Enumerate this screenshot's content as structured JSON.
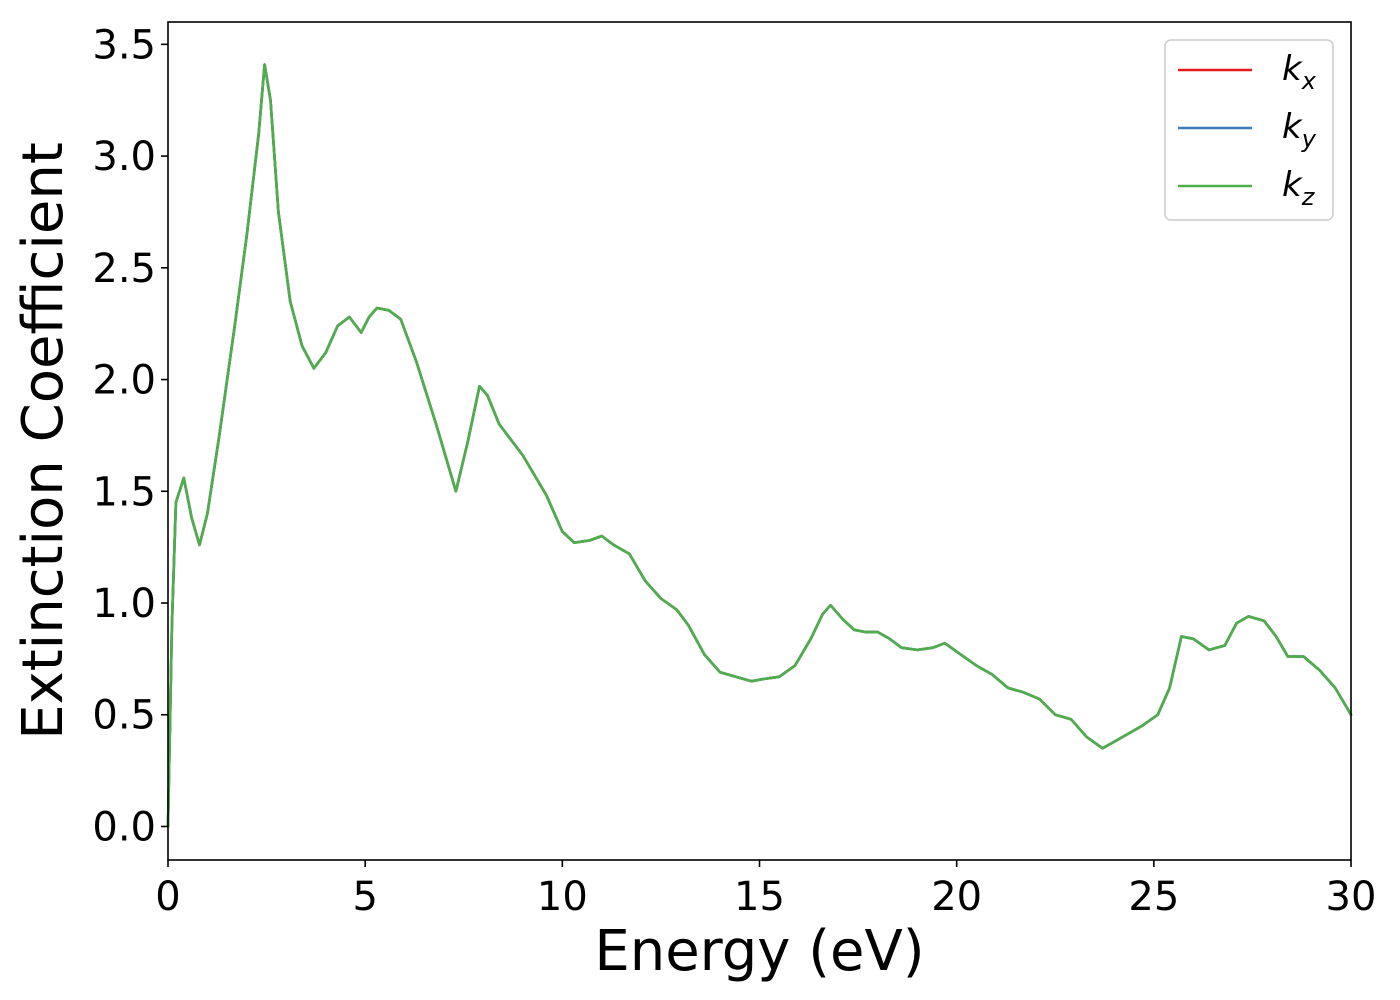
{
  "chart_data": {
    "type": "line",
    "xlabel": "Energy (eV)",
    "ylabel": "Extinction Coefficient",
    "xlim": [
      0,
      30
    ],
    "ylim": [
      -0.15,
      3.6
    ],
    "xticks": [
      0,
      5,
      10,
      15,
      20,
      25,
      30
    ],
    "xtick_labels": [
      "0",
      "5",
      "10",
      "15",
      "20",
      "25",
      "30"
    ],
    "yticks": [
      0.0,
      0.5,
      1.0,
      1.5,
      2.0,
      2.5,
      3.0,
      3.5
    ],
    "ytick_labels": [
      "0.0",
      "0.5",
      "1.0",
      "1.5",
      "2.0",
      "2.5",
      "3.0",
      "3.5"
    ],
    "grid": false,
    "legend_position": "top-right",
    "series": [
      {
        "name": "k_x",
        "label_main": "k",
        "label_sub": "x",
        "color": "#e41a1c"
      },
      {
        "name": "k_y",
        "label_main": "k",
        "label_sub": "y",
        "color": "#377eb8"
      },
      {
        "name": "k_z",
        "label_main": "k",
        "label_sub": "z",
        "color": "#4daf4a"
      }
    ],
    "x": [
      0,
      0.1,
      0.2,
      0.4,
      0.6,
      0.8,
      1.0,
      1.3,
      1.7,
      2.0,
      2.3,
      2.45,
      2.6,
      2.8,
      3.1,
      3.4,
      3.7,
      4.0,
      4.3,
      4.6,
      4.9,
      5.1,
      5.3,
      5.6,
      5.9,
      6.3,
      6.8,
      7.3,
      7.6,
      7.9,
      8.1,
      8.4,
      9.0,
      9.6,
      10.0,
      10.3,
      10.7,
      11.0,
      11.3,
      11.7,
      12.1,
      12.5,
      12.9,
      13.2,
      13.6,
      14.0,
      14.4,
      14.8,
      15.1,
      15.5,
      15.9,
      16.3,
      16.6,
      16.8,
      17.1,
      17.4,
      17.7,
      18.0,
      18.3,
      18.6,
      19.0,
      19.4,
      19.7,
      20.1,
      20.5,
      20.9,
      21.3,
      21.7,
      22.1,
      22.5,
      22.9,
      23.3,
      23.7,
      24.0,
      24.3,
      24.7,
      25.1,
      25.4,
      25.7,
      26.0,
      26.4,
      26.8,
      27.1,
      27.4,
      27.8,
      28.1,
      28.4,
      28.8,
      29.2,
      29.6,
      30.0
    ],
    "values": [
      0.0,
      0.9,
      1.45,
      1.56,
      1.38,
      1.26,
      1.4,
      1.75,
      2.25,
      2.65,
      3.1,
      3.41,
      3.25,
      2.75,
      2.35,
      2.15,
      2.05,
      2.12,
      2.24,
      2.28,
      2.21,
      2.28,
      2.32,
      2.31,
      2.27,
      2.08,
      1.8,
      1.5,
      1.72,
      1.97,
      1.93,
      1.8,
      1.66,
      1.48,
      1.32,
      1.27,
      1.28,
      1.3,
      1.26,
      1.22,
      1.1,
      1.02,
      0.97,
      0.9,
      0.77,
      0.69,
      0.67,
      0.65,
      0.66,
      0.67,
      0.72,
      0.84,
      0.95,
      0.99,
      0.93,
      0.88,
      0.87,
      0.87,
      0.84,
      0.8,
      0.79,
      0.8,
      0.82,
      0.77,
      0.72,
      0.68,
      0.62,
      0.6,
      0.57,
      0.5,
      0.48,
      0.4,
      0.35,
      0.38,
      0.41,
      0.45,
      0.5,
      0.62,
      0.85,
      0.84,
      0.79,
      0.81,
      0.91,
      0.94,
      0.92,
      0.85,
      0.76,
      0.76,
      0.7,
      0.62,
      0.5
    ]
  }
}
